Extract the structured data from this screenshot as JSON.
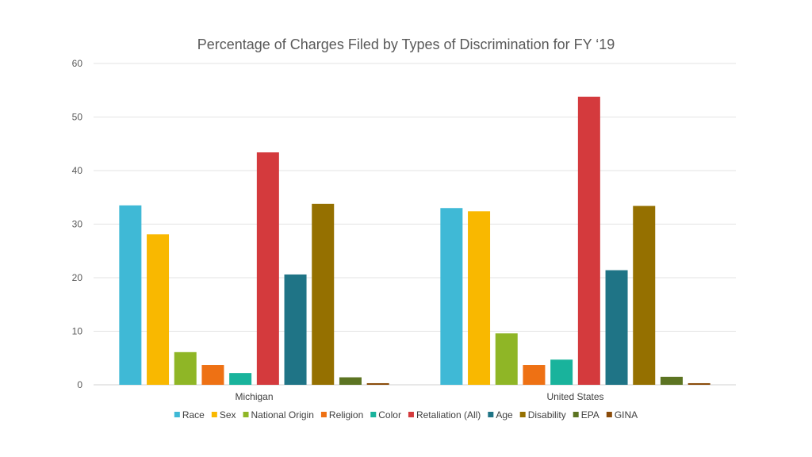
{
  "chart_data": {
    "type": "bar",
    "title": "Percentage of Charges Filed by Types of Discrimination for FY ‘19",
    "xlabel": "",
    "ylabel": "",
    "ylim": [
      0,
      60
    ],
    "yticks": [
      0,
      10,
      20,
      30,
      40,
      50,
      60
    ],
    "grid": true,
    "legend": "bottom",
    "categories": [
      "Michigan",
      "United States"
    ],
    "series": [
      {
        "name": "Race",
        "color": "#3fb9d6",
        "values": [
          33.5,
          33.0
        ]
      },
      {
        "name": "Sex",
        "color": "#f9b800",
        "values": [
          28.1,
          32.4
        ]
      },
      {
        "name": "National Origin",
        "color": "#8fb626",
        "values": [
          6.1,
          9.6
        ]
      },
      {
        "name": "Religion",
        "color": "#ee7114",
        "values": [
          3.7,
          3.7
        ]
      },
      {
        "name": "Color",
        "color": "#19b39c",
        "values": [
          2.2,
          4.7
        ]
      },
      {
        "name": "Retaliation (All)",
        "color": "#d43a3d",
        "values": [
          43.4,
          53.8
        ]
      },
      {
        "name": "Age",
        "color": "#1f7486",
        "values": [
          20.6,
          21.4
        ]
      },
      {
        "name": "Disability",
        "color": "#957000",
        "values": [
          33.8,
          33.4
        ]
      },
      {
        "name": "EPA",
        "color": "#5c7422",
        "values": [
          1.4,
          1.5
        ]
      },
      {
        "name": "GINA",
        "color": "#8a4b0a",
        "values": [
          0.3,
          0.3
        ]
      }
    ]
  }
}
